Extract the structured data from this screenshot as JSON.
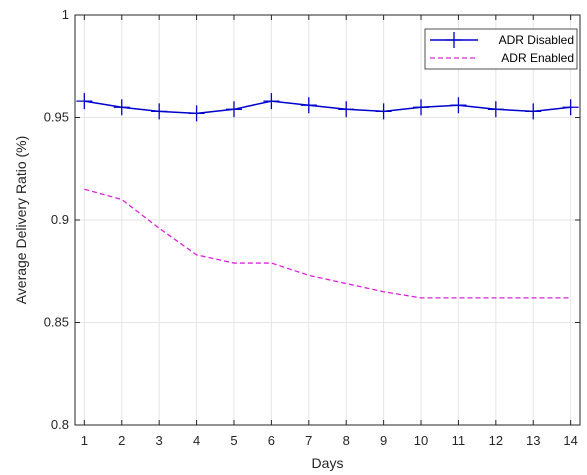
{
  "chart_data": {
    "type": "line",
    "title": "",
    "xlabel": "Days",
    "ylabel": "Average Delivery Ratio (%)",
    "xlim": [
      0.75,
      14.25
    ],
    "ylim": [
      0.8,
      1.0
    ],
    "x": [
      1,
      2,
      3,
      4,
      5,
      6,
      7,
      8,
      9,
      10,
      11,
      12,
      13,
      14
    ],
    "x_tick_labels": [
      "1",
      "2",
      "3",
      "4",
      "5",
      "6",
      "7",
      "8",
      "9",
      "10",
      "11",
      "12",
      "13",
      "14"
    ],
    "y_ticks": [
      0.8,
      0.85,
      0.9,
      0.95,
      1.0
    ],
    "y_tick_labels": [
      "0.8",
      "0.85",
      "0.9",
      "0.95",
      "1"
    ],
    "grid": true,
    "legend_position": "top-right",
    "series": [
      {
        "name": "ADR Disabled",
        "values": [
          0.958,
          0.955,
          0.953,
          0.952,
          0.954,
          0.958,
          0.956,
          0.954,
          0.953,
          0.955,
          0.956,
          0.954,
          0.953,
          0.955
        ],
        "color": "#0000cc",
        "line_style": "solid",
        "marker": "plus"
      },
      {
        "name": "ADR Enabled",
        "values": [
          0.915,
          0.91,
          0.896,
          0.883,
          0.879,
          0.879,
          0.873,
          0.869,
          0.865,
          0.862,
          0.862,
          0.862,
          0.862,
          0.862
        ],
        "color": "#e020e0",
        "line_style": "dashed",
        "marker": "none"
      }
    ]
  }
}
